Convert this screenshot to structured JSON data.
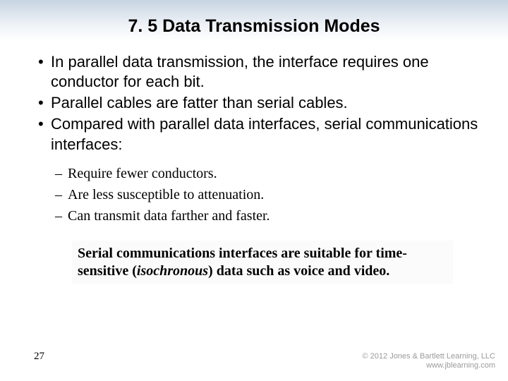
{
  "title": {
    "text": "7. 5 Data Transmission Modes",
    "fontsize": 25
  },
  "bullets": {
    "fontsize": 22,
    "items": [
      "In parallel data transmission, the interface requires one conductor for each bit.",
      "Parallel cables are fatter than serial cables.",
      "Compared with parallel data interfaces, serial communications interfaces:"
    ]
  },
  "sub_bullets": {
    "fontsize": 20,
    "items": [
      "Require fewer conductors.",
      "Are less susceptible to attenuation.",
      "Can transmit data farther and faster."
    ]
  },
  "callout": {
    "fontsize": 20,
    "prefix": "Serial communications interfaces are suitable for time-sensitive (",
    "ital": "isochronous",
    "suffix": ") data such as voice and video."
  },
  "page_number": {
    "text": "27",
    "fontsize": 15
  },
  "footer": {
    "fontsize": 11,
    "line1": "© 2012 Jones & Bartlett Learning, LLC",
    "line2": "www.jblearning.com"
  },
  "colors": {
    "header_grad_top": "#c7d4e2",
    "header_grad_bottom": "#ffffff",
    "text": "#000000",
    "footer_text": "#9a9a9a",
    "callout_bg": "#fbfbfb"
  }
}
